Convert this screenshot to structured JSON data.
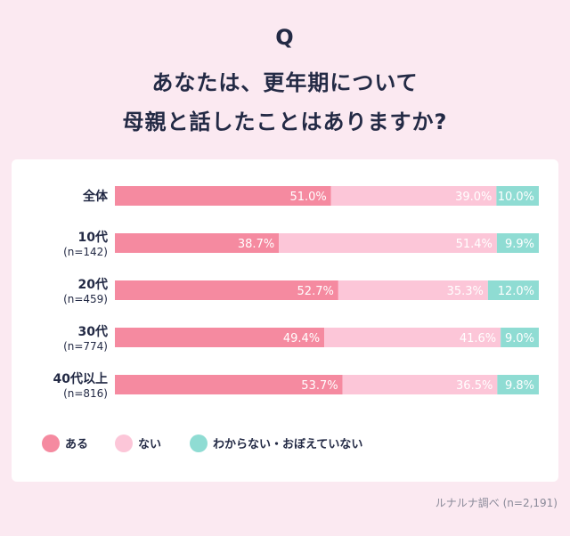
{
  "header": {
    "q_mark": "Q",
    "title_line1": "あなたは、更年期について",
    "title_line2": "母親と話したことはありますか?"
  },
  "colors": {
    "background": "#fbe9f1",
    "aru": "#f58aa0",
    "nai": "#fcc6d8",
    "wakaranai": "#8fdcd3",
    "text": "#232a45"
  },
  "chart_data": {
    "type": "bar",
    "orientation": "horizontal",
    "stacked": true,
    "unit": "%",
    "categories": [
      {
        "label": "全体",
        "sub": ""
      },
      {
        "label": "10代",
        "sub": "(n=142)"
      },
      {
        "label": "20代",
        "sub": "(n=459)"
      },
      {
        "label": "30代",
        "sub": "(n=774)"
      },
      {
        "label": "40代以上",
        "sub": "(n=816)"
      }
    ],
    "series": [
      {
        "name": "ある",
        "color": "#f58aa0",
        "values": [
          51.0,
          38.7,
          52.7,
          49.4,
          53.7
        ]
      },
      {
        "name": "ない",
        "color": "#fcc6d8",
        "values": [
          39.0,
          51.4,
          35.3,
          41.6,
          36.5
        ]
      },
      {
        "name": "わからない・おぼえていない",
        "color": "#8fdcd3",
        "values": [
          10.0,
          9.9,
          12.0,
          9.0,
          9.8
        ]
      }
    ],
    "xlim": [
      0,
      100
    ],
    "legend_position": "bottom-left"
  },
  "footer": {
    "source": "ルナルナ調べ (n=2,191)"
  }
}
